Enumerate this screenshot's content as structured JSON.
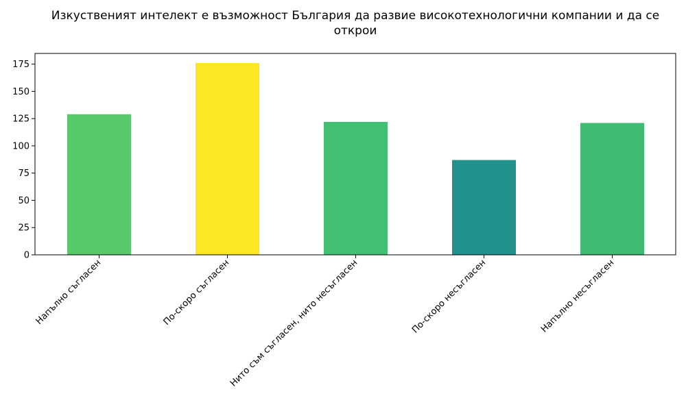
{
  "chart_data": {
    "type": "bar",
    "title_lines": [
      "Изкуственият интелект е възможност България да развие високотехнологични компании и да се",
      "открои"
    ],
    "xlabel": "",
    "ylabel": "",
    "categories": [
      "Напълно съгласен",
      "По-скоро съгласен",
      "Нито съм съгласен, нито несъгласен",
      "По-скоро несъгласен",
      "Напълно несъгласен"
    ],
    "values": [
      129,
      176,
      122,
      87,
      121
    ],
    "colors": [
      "#58c96b",
      "#fde725",
      "#42bf73",
      "#21918c",
      "#3fbb74"
    ],
    "yticks": [
      0,
      25,
      50,
      75,
      100,
      125,
      150,
      175
    ],
    "ylim": [
      0,
      184.8
    ],
    "grid": false,
    "legend": "none"
  }
}
